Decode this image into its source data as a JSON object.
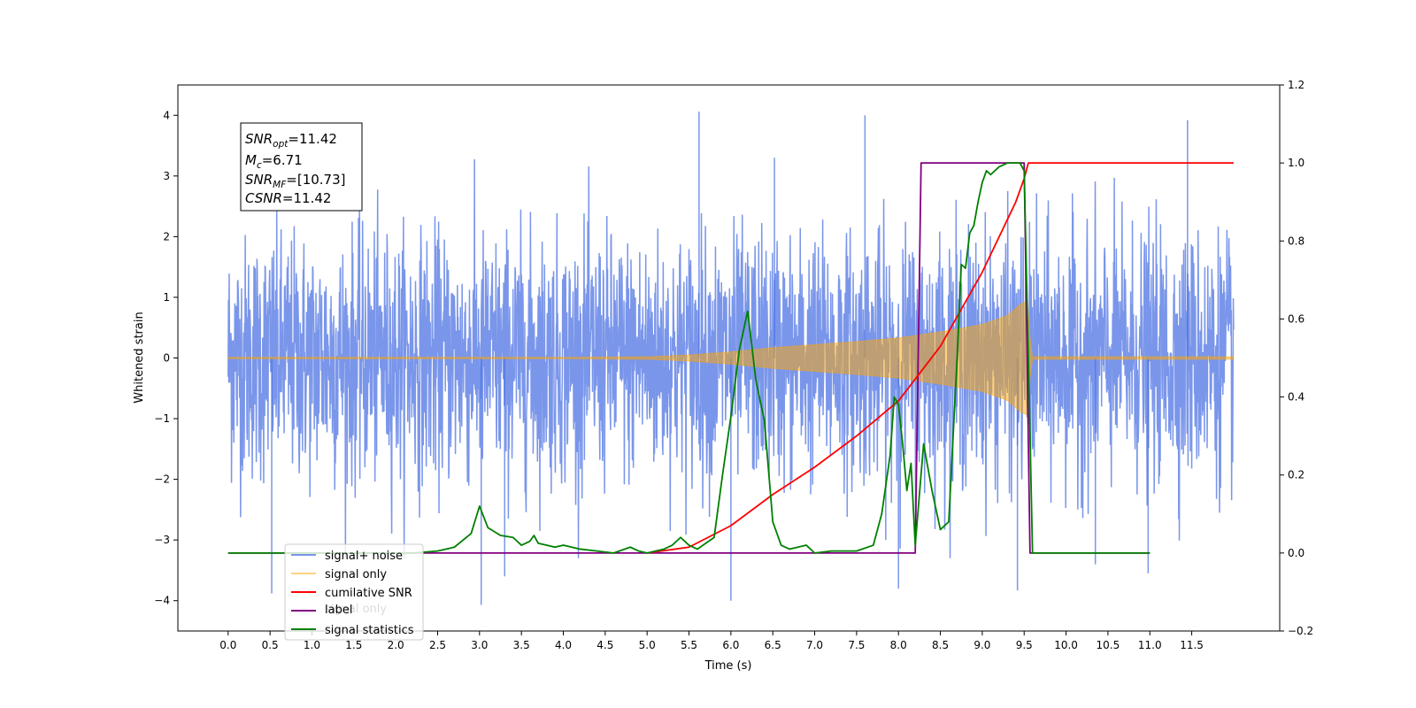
{
  "chart_data": {
    "type": "line",
    "xlabel": "Time (s)",
    "ylabel": "Whitened strain",
    "xlim": [
      -0.6,
      12.55
    ],
    "ylim_left": [
      -4.5,
      4.5
    ],
    "ylim_right": [
      -0.2,
      1.2
    ],
    "x_ticks": [
      0.0,
      0.5,
      1.0,
      1.5,
      2.0,
      2.5,
      3.0,
      3.5,
      4.0,
      4.5,
      5.0,
      5.5,
      6.0,
      6.5,
      7.0,
      7.5,
      8.0,
      8.5,
      9.0,
      9.5,
      10.0,
      10.5,
      11.0,
      11.5
    ],
    "x_tick_labels": [
      "0.0",
      "0.5",
      "1.0",
      "1.5",
      "2.0",
      "2.5",
      "3.0",
      "3.5",
      "4.0",
      "4.5",
      "5.0",
      "5.5",
      "6.0",
      "6.5",
      "7.0",
      "7.5",
      "8.0",
      "8.5",
      "9.0",
      "9.5",
      "10.0",
      "10.5",
      "11.0",
      "11.5"
    ],
    "y_left_ticks": [
      4,
      3,
      2,
      1,
      0,
      -1,
      -2,
      -3,
      -4
    ],
    "y_left_tick_labels": [
      "4",
      "3",
      "2",
      "1",
      "0",
      "−1",
      "−2",
      "−3",
      "−4"
    ],
    "y_right_ticks": [
      1.2,
      1.0,
      0.8,
      0.6,
      0.4,
      0.2,
      0.0,
      -0.2
    ],
    "y_right_tick_labels": [
      "1.2",
      "1.0",
      "0.8",
      "0.6",
      "0.4",
      "0.2",
      "0.0",
      "−0.2"
    ],
    "grid": false,
    "legend_position": "bottom-left",
    "legend": [
      "signal+ noise",
      "signal only",
      "cumilative SNR",
      "label",
      "signal statistics"
    ],
    "legend_hidden_text": "signal only",
    "stats_box": [
      {
        "main": "SNR",
        "sub": "opt",
        "rest": "=11.42"
      },
      {
        "main": "M",
        "sub": "c",
        "rest": "=6.71"
      },
      {
        "main": "SNR",
        "sub": "MF",
        "rest": "=[10.73]"
      },
      {
        "main": "CSNR",
        "sub": "",
        "rest": "=11.42"
      }
    ],
    "series": [
      {
        "name": "signal+ noise",
        "axis": "left",
        "color": "#4169e1",
        "opacity": 0.7,
        "x_range": [
          0.0,
          12.0
        ],
        "noise_std": 1.0,
        "spikes": [
          [
            0.52,
            -3.88
          ],
          [
            3.02,
            -4.07
          ],
          [
            3.3,
            -3.6
          ],
          [
            5.62,
            4.06
          ],
          [
            6.0,
            -4.0
          ],
          [
            6.52,
            3.3
          ],
          [
            7.6,
            4.0
          ],
          [
            8.0,
            -3.8
          ],
          [
            9.42,
            -3.83
          ],
          [
            10.35,
            -3.4
          ],
          [
            10.98,
            -3.55
          ],
          [
            11.45,
            3.92
          ]
        ]
      },
      {
        "name": "signal only",
        "axis": "left",
        "color": "#ffa500",
        "opacity": 0.5,
        "envelope_t": [
          0.0,
          4.0,
          5.0,
          5.5,
          6.0,
          6.5,
          7.0,
          7.5,
          8.0,
          8.5,
          9.0,
          9.3,
          9.45,
          9.55,
          9.58,
          12.0
        ],
        "envelope_a": [
          0.01,
          0.01,
          0.02,
          0.05,
          0.1,
          0.17,
          0.22,
          0.27,
          0.33,
          0.43,
          0.55,
          0.7,
          0.88,
          0.95,
          0.02,
          0.02
        ]
      },
      {
        "name": "cumilative SNR",
        "axis": "right",
        "color": "#ff0000",
        "x": [
          5.0,
          5.5,
          6.0,
          6.5,
          7.0,
          7.5,
          8.0,
          8.5,
          9.0,
          9.2,
          9.4,
          9.5,
          9.55,
          12.0
        ],
        "y": [
          0.0,
          0.015,
          0.07,
          0.15,
          0.22,
          0.3,
          0.39,
          0.53,
          0.72,
          0.81,
          0.9,
          0.96,
          1.0,
          1.0
        ]
      },
      {
        "name": "label",
        "axis": "right",
        "color": "#800080",
        "x": [
          0.0,
          8.2,
          8.27,
          9.5,
          9.57,
          11.0
        ],
        "y": [
          0.0,
          0.0,
          1.0,
          1.0,
          0.0,
          0.0
        ]
      },
      {
        "name": "signal statistics",
        "axis": "right",
        "color": "#008000",
        "x": [
          0.0,
          2.2,
          2.5,
          2.7,
          2.9,
          3.0,
          3.1,
          3.25,
          3.4,
          3.5,
          3.6,
          3.65,
          3.7,
          3.8,
          3.9,
          4.0,
          4.2,
          4.4,
          4.6,
          4.8,
          4.9,
          5.0,
          5.2,
          5.3,
          5.4,
          5.5,
          5.6,
          5.8,
          5.9,
          6.0,
          6.1,
          6.2,
          6.3,
          6.4,
          6.5,
          6.6,
          6.7,
          6.9,
          7.0,
          7.2,
          7.5,
          7.7,
          7.8,
          7.9,
          7.95,
          8.0,
          8.05,
          8.1,
          8.15,
          8.2,
          8.3,
          8.4,
          8.5,
          8.6,
          8.7,
          8.75,
          8.8,
          8.85,
          8.9,
          8.95,
          9.0,
          9.05,
          9.1,
          9.2,
          9.3,
          9.45,
          9.5,
          9.55,
          9.6,
          9.65,
          9.7,
          9.8,
          11.0
        ],
        "y": [
          0.0,
          0.0,
          0.005,
          0.015,
          0.05,
          0.12,
          0.065,
          0.045,
          0.04,
          0.02,
          0.03,
          0.045,
          0.025,
          0.02,
          0.015,
          0.02,
          0.01,
          0.005,
          0.0,
          0.015,
          0.005,
          0.0,
          0.01,
          0.02,
          0.04,
          0.02,
          0.01,
          0.04,
          0.2,
          0.35,
          0.52,
          0.62,
          0.44,
          0.34,
          0.08,
          0.02,
          0.01,
          0.02,
          0.0,
          0.005,
          0.005,
          0.02,
          0.1,
          0.25,
          0.4,
          0.38,
          0.28,
          0.16,
          0.23,
          0.02,
          0.28,
          0.16,
          0.06,
          0.08,
          0.5,
          0.74,
          0.73,
          0.82,
          0.84,
          0.9,
          0.95,
          0.98,
          0.97,
          0.99,
          1.0,
          1.0,
          0.98,
          0.5,
          0.0,
          0.0,
          0.0,
          0.0,
          0.0
        ]
      }
    ]
  }
}
